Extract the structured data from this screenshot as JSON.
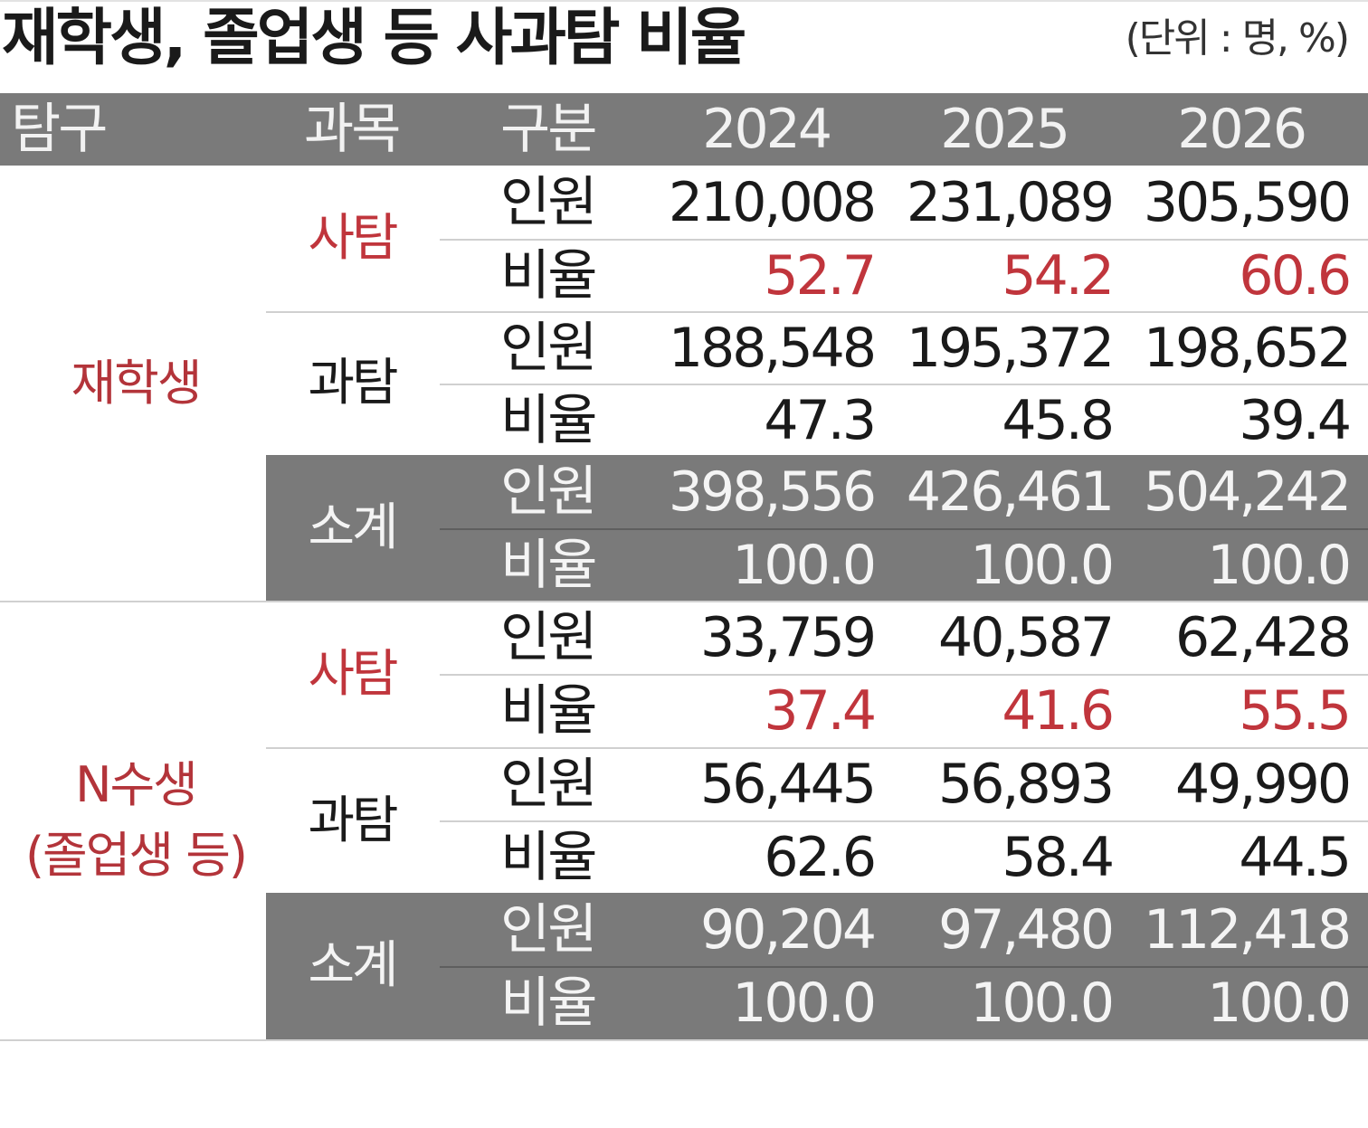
{
  "title": "재학생, 졸업생 등 사과탐 비율",
  "unit": "(단위 : 명, %)",
  "headers": {
    "category": "탐구",
    "subject": "과목",
    "division": "구분",
    "years": [
      "2024",
      "2025",
      "2026"
    ]
  },
  "labels": {
    "count": "인원",
    "ratio": "비율"
  },
  "groups": [
    {
      "category": "재학생",
      "subjects": [
        {
          "name": "사탐",
          "count": [
            "210,008",
            "231,089",
            "305,590"
          ],
          "ratio": [
            "52.7",
            "54.2",
            "60.6"
          ]
        },
        {
          "name": "과탐",
          "count": [
            "188,548",
            "195,372",
            "198,652"
          ],
          "ratio": [
            "47.3",
            "45.8",
            "39.4"
          ]
        },
        {
          "name": "소계",
          "count": [
            "398,556",
            "426,461",
            "504,242"
          ],
          "ratio": [
            "100.0",
            "100.0",
            "100.0"
          ]
        }
      ]
    },
    {
      "category_line1": "N수생",
      "category_line2": "(졸업생 등)",
      "subjects": [
        {
          "name": "사탐",
          "count": [
            "33,759",
            "40,587",
            "62,428"
          ],
          "ratio": [
            "37.4",
            "41.6",
            "55.5"
          ]
        },
        {
          "name": "과탐",
          "count": [
            "56,445",
            "56,893",
            "49,990"
          ],
          "ratio": [
            "62.6",
            "58.4",
            "44.5"
          ]
        },
        {
          "name": "소계",
          "count": [
            "90,204",
            "97,480",
            "112,418"
          ],
          "ratio": [
            "100.0",
            "100.0",
            "100.0"
          ]
        }
      ]
    }
  ],
  "colors": {
    "accent_red": "#c0353c",
    "header_gray": "#7a7a7a"
  }
}
